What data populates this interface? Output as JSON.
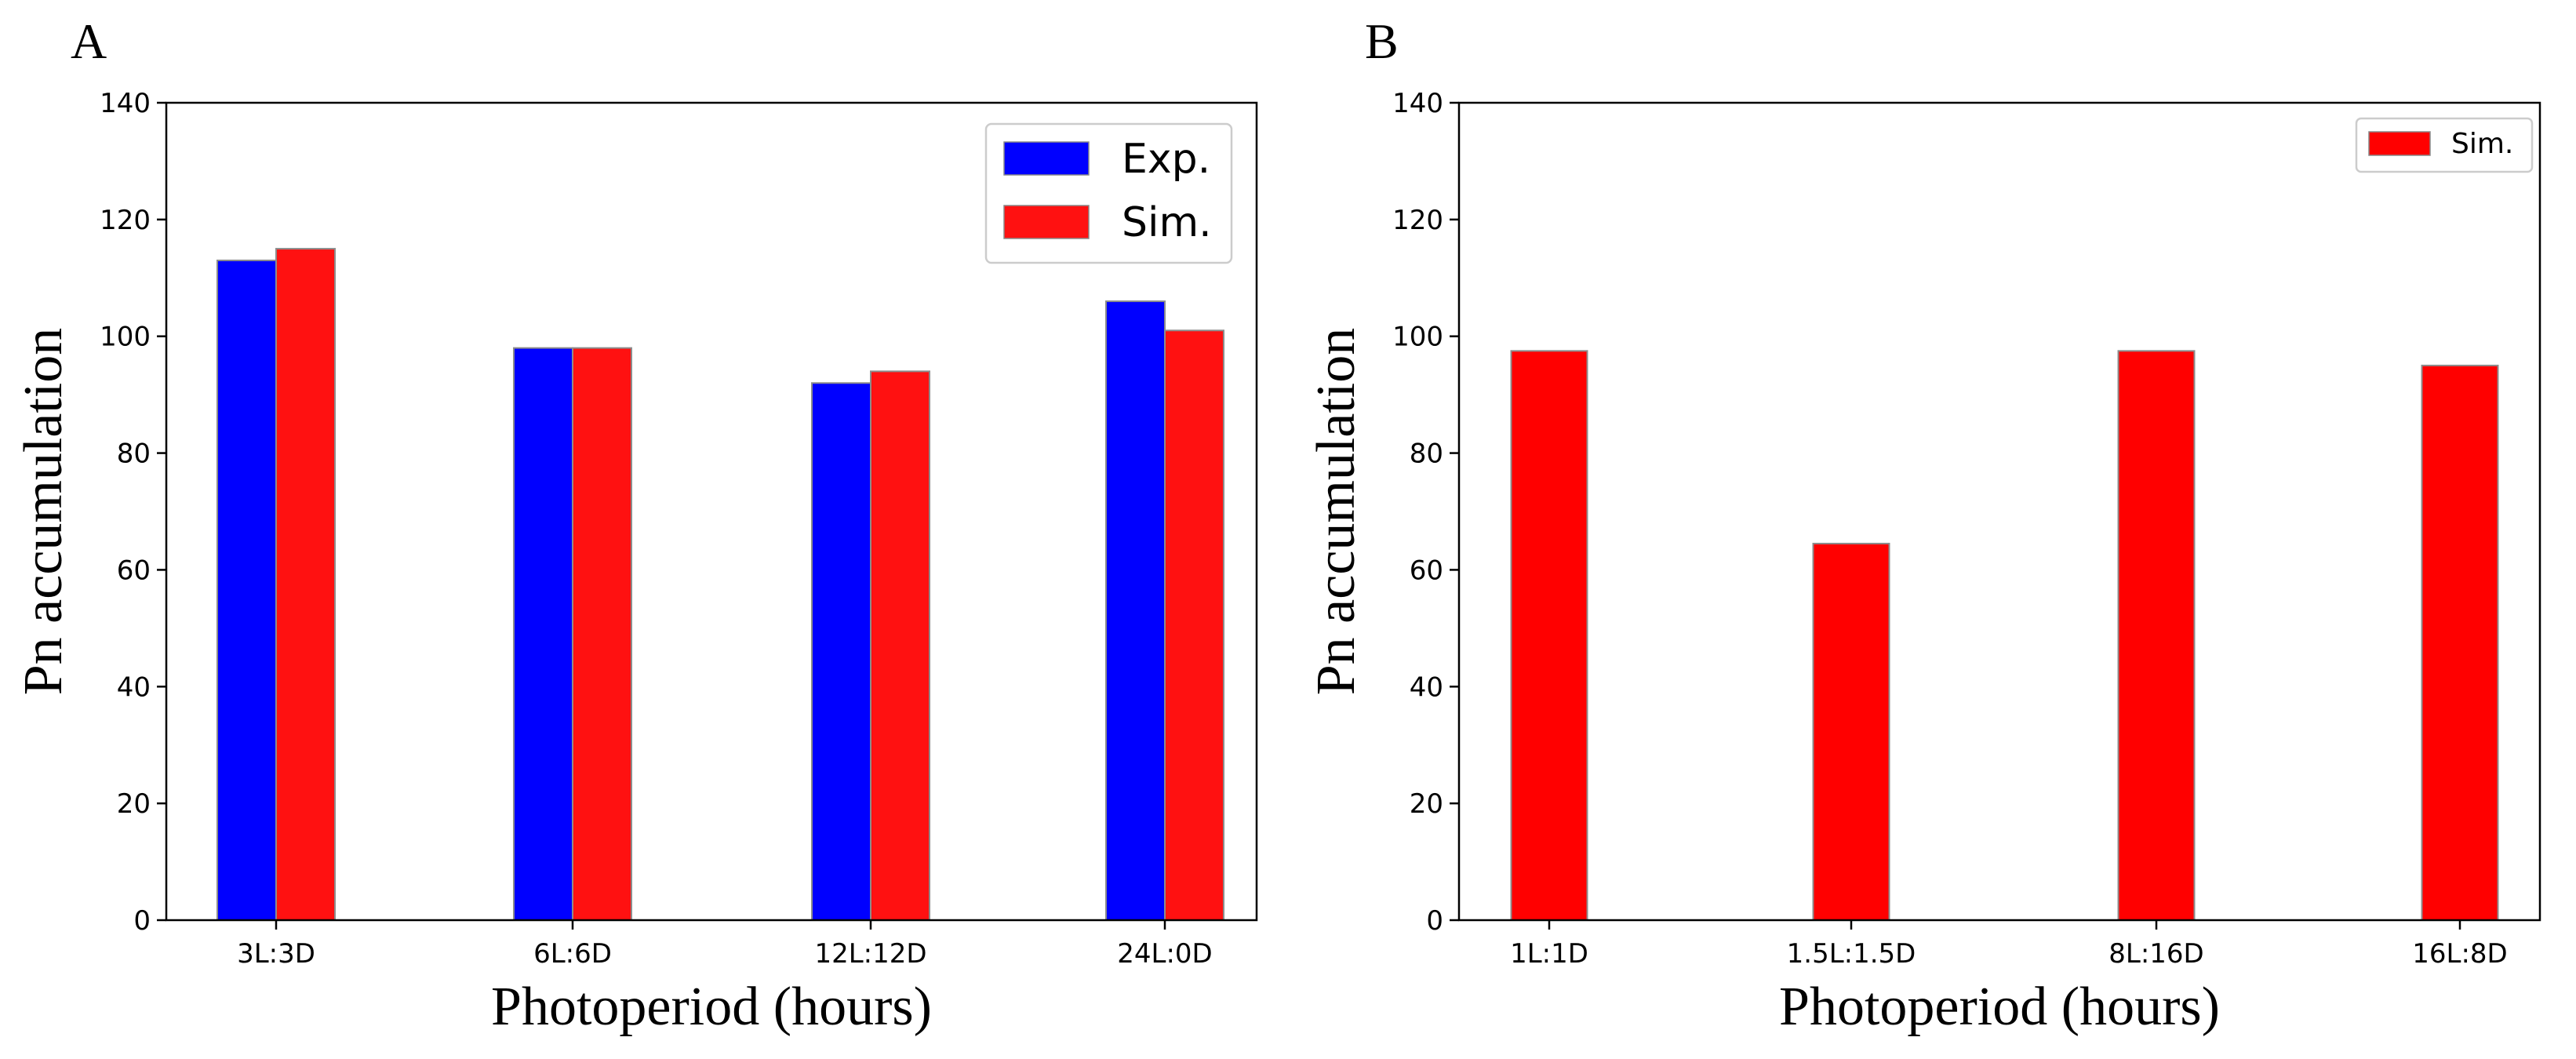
{
  "chart_data": [
    {
      "panel_label": "A",
      "type": "bar",
      "categories": [
        "3L:3D",
        "6L:6D",
        "12L:12D",
        "24L:0D"
      ],
      "series": [
        {
          "name": "Exp.",
          "values": [
            113,
            98,
            92,
            106
          ],
          "color": "#0000ff"
        },
        {
          "name": "Sim.",
          "values": [
            115,
            98,
            94,
            101
          ],
          "color": "#ff1111"
        }
      ],
      "xlabel": "Photoperiod (hours)",
      "ylabel": "Pn accumulation",
      "ylim": [
        0,
        140
      ],
      "yticks": [
        0,
        20,
        40,
        60,
        80,
        100,
        120,
        140
      ],
      "legend": "top-right",
      "grid": false
    },
    {
      "panel_label": "B",
      "type": "bar",
      "categories": [
        "1L:1D",
        "1.5L:1.5D",
        "8L:16D",
        "16L:8D"
      ],
      "series": [
        {
          "name": "Sim.",
          "values": [
            97.5,
            64.5,
            97.5,
            95
          ],
          "color": "#ff0000"
        }
      ],
      "xlabel": "Photoperiod (hours)",
      "ylabel": "Pn accumulation",
      "ylim": [
        0,
        140
      ],
      "yticks": [
        0,
        20,
        40,
        60,
        80,
        100,
        120,
        140
      ],
      "legend": "top-right",
      "grid": false
    }
  ]
}
